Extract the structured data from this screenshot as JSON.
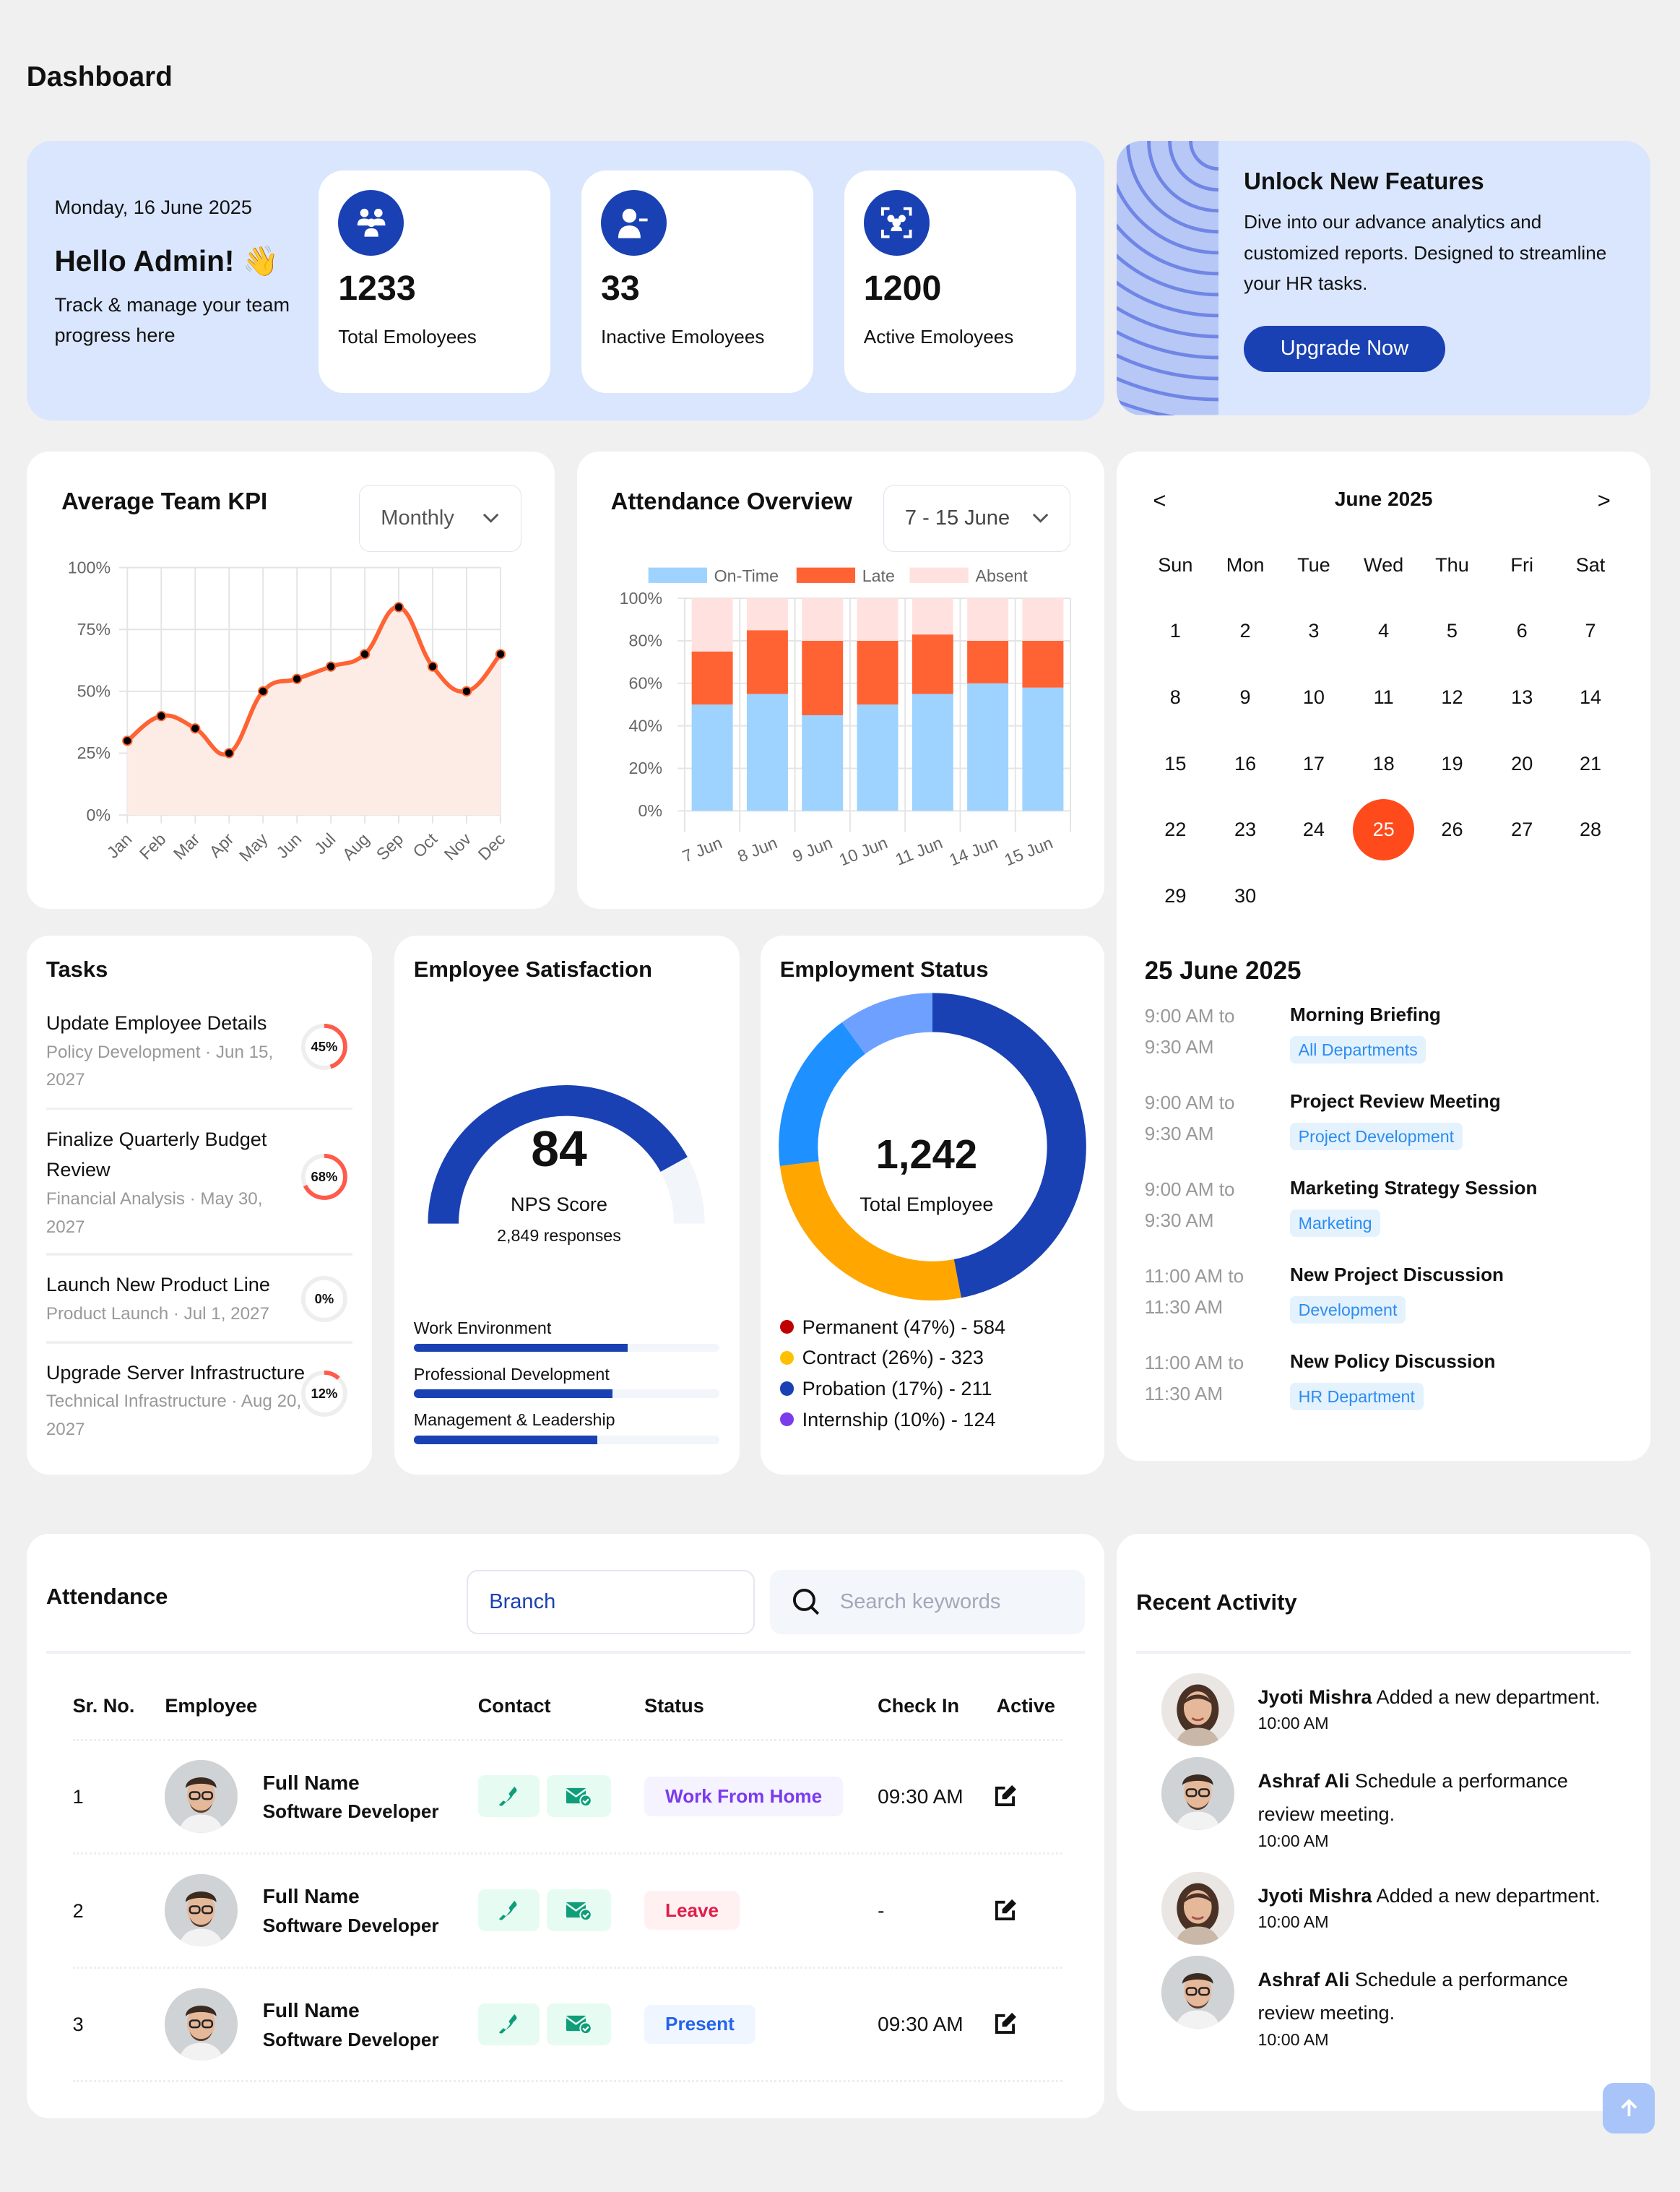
{
  "page_title": "Dashboard",
  "colors": {
    "primary": "#1a41b3",
    "accent": "#ff6333",
    "on_time": "#9dd3fe",
    "late": "#ff6333",
    "absent": "#ffe2df",
    "today": "#ff4a1c"
  },
  "hero": {
    "date": "Monday, 16 June 2025",
    "greeting": "Hello Admin! 👋",
    "subtitle": "Track & manage your team progress here",
    "stats": [
      {
        "icon": "users-group-icon",
        "value": "1233",
        "label": "Total Emoloyees"
      },
      {
        "icon": "user-minus-icon",
        "value": "33",
        "label": "Inactive Emoloyees"
      },
      {
        "icon": "users-scan-icon",
        "value": "1200",
        "label": "Active Emoloyees"
      }
    ]
  },
  "promo": {
    "title": "Unlock New Features",
    "text": "Dive into our advance analytics and customized reports. Designed to streamline your HR tasks.",
    "button": "Upgrade Now"
  },
  "kpi": {
    "title": "Average Team KPI",
    "period": "Monthly"
  },
  "attendance_overview": {
    "title": "Attendance Overview",
    "range": "7 - 15 June"
  },
  "chart_data": [
    {
      "type": "area",
      "title": "Average Team KPI",
      "categories": [
        "Jan",
        "Feb",
        "Mar",
        "Apr",
        "May",
        "Jun",
        "Jul",
        "Aug",
        "Sep",
        "Oct",
        "Nov",
        "Dec"
      ],
      "values": [
        30,
        40,
        35,
        25,
        50,
        55,
        60,
        65,
        84,
        60,
        50,
        65
      ],
      "yticks": [
        "0%",
        "25%",
        "50%",
        "75%",
        "100%"
      ],
      "ylim": [
        0,
        100
      ],
      "grid": true
    },
    {
      "type": "bar",
      "stacked": true,
      "title": "Attendance Overview",
      "categories": [
        "7 Jun",
        "8 Jun",
        "9 Jun",
        "10 Jun",
        "11 Jun",
        "14 Jun",
        "15 Jun"
      ],
      "series": [
        {
          "name": "On-Time",
          "values": [
            50,
            55,
            45,
            50,
            55,
            60,
            58
          ]
        },
        {
          "name": "Late",
          "values": [
            25,
            30,
            35,
            30,
            28,
            20,
            22
          ]
        },
        {
          "name": "Absent",
          "values": [
            25,
            15,
            20,
            20,
            17,
            20,
            20
          ]
        }
      ],
      "yticks": [
        "0%",
        "20%",
        "40%",
        "60%",
        "80%",
        "100%"
      ],
      "ylim": [
        0,
        100
      ],
      "legend": "top",
      "grid": true
    }
  ],
  "calendar": {
    "prev": "<",
    "next": ">",
    "month": "June 2025",
    "weekdays": [
      "Sun",
      "Mon",
      "Tue",
      "Wed",
      "Thu",
      "Fri",
      "Sat"
    ],
    "days": [
      "1",
      "2",
      "3",
      "4",
      "5",
      "6",
      "7",
      "8",
      "9",
      "10",
      "11",
      "12",
      "13",
      "14",
      "15",
      "16",
      "17",
      "18",
      "19",
      "20",
      "21",
      "22",
      "23",
      "24",
      "25",
      "26",
      "27",
      "28",
      "29",
      "30"
    ],
    "selected": "25",
    "events_date": "25 June 2025",
    "events": [
      {
        "from": "9:00 AM to",
        "to": "9:30 AM",
        "title": "Morning Briefing",
        "tag": "All Departments"
      },
      {
        "from": "9:00 AM to",
        "to": "9:30 AM",
        "title": "Project Review Meeting",
        "tag": "Project Development"
      },
      {
        "from": "9:00 AM to",
        "to": "9:30 AM",
        "title": "Marketing Strategy Session",
        "tag": "Marketing"
      },
      {
        "from": "11:00 AM to",
        "to": "11:30 AM",
        "title": "New Project Discussion",
        "tag": "Development"
      },
      {
        "from": "11:00 AM to",
        "to": "11:30 AM",
        "title": "New Policy Discussion",
        "tag": "HR Department"
      }
    ]
  },
  "tasks": {
    "title": "Tasks",
    "items": [
      {
        "title": "Update Employee Details",
        "meta": "Policy Development · Jun 15, 2027",
        "progress": 45,
        "label": "45%"
      },
      {
        "title": "Finalize Quarterly Budget Review",
        "meta": "Financial Analysis · May 30, 2027",
        "progress": 68,
        "label": "68%"
      },
      {
        "title": "Launch New Product Line",
        "meta": "Product Launch · Jul 1, 2027",
        "progress": 0,
        "label": "0%"
      },
      {
        "title": "Upgrade Server Infrastructure",
        "meta": "Technical Infrastructure · Aug 20, 2027",
        "progress": 12,
        "label": "12%"
      }
    ]
  },
  "satisfaction": {
    "title": "Employee Satisfaction",
    "score": "84",
    "score_value": 84,
    "score_label": "NPS Score",
    "responses": "2,849 responses",
    "bars": [
      {
        "label": "Work Environment",
        "value": 70
      },
      {
        "label": "Professional Development",
        "value": 65
      },
      {
        "label": "Management & Leadership",
        "value": 60
      }
    ]
  },
  "employment": {
    "title": "Employment Status",
    "total": "1,242",
    "total_label": "Total Employee",
    "segments": [
      {
        "label": "Permanent (47%) - 584",
        "percent": 47,
        "legend_color": "#c00000",
        "arc_color": "#1a41b3"
      },
      {
        "label": "Contract (26%) - 323",
        "percent": 26,
        "legend_color": "#ffc000",
        "arc_color": "#ffa600"
      },
      {
        "label": "Probation (17%) - 211",
        "percent": 17,
        "legend_color": "#1a41b3",
        "arc_color": "#1e90ff"
      },
      {
        "label": "Internship (10%) - 124",
        "percent": 10,
        "legend_color": "#7c3aed",
        "arc_color": "#6ea1ff"
      }
    ]
  },
  "attendance": {
    "title": "Attendance",
    "branch_placeholder": "Branch",
    "search_placeholder": "Search keywords",
    "columns": [
      "Sr. No.",
      "Employee",
      "Contact",
      "Status",
      "Check In",
      "Active"
    ],
    "rows": [
      {
        "sr": "1",
        "name": "Full Name",
        "role": "Software Developer",
        "status": "Work From Home",
        "status_color": "#7c3aed",
        "status_bg": "#f5f3ff",
        "check_in": "09:30 AM"
      },
      {
        "sr": "2",
        "name": "Full Name",
        "role": "Software Developer",
        "status": "Leave",
        "status_color": "#e11d48",
        "status_bg": "#fff1f2",
        "check_in": "-"
      },
      {
        "sr": "3",
        "name": "Full Name",
        "role": "Software Developer",
        "status": "Present",
        "status_color": "#2563eb",
        "status_bg": "#eff6ff",
        "check_in": "09:30 AM"
      }
    ]
  },
  "recent_activity": {
    "title": "Recent Activity",
    "items": [
      {
        "name": "Jyoti Mishra",
        "text": "Added a new department.",
        "time": "10:00 AM",
        "avatar": "female"
      },
      {
        "name": "Ashraf Ali",
        "text": "Schedule a performance review meeting.",
        "time": "10:00 AM",
        "avatar": "male"
      },
      {
        "name": "Jyoti Mishra",
        "text": "Added a new department.",
        "time": "10:00 AM",
        "avatar": "female"
      },
      {
        "name": "Ashraf Ali",
        "text": "Schedule a performance review meeting.",
        "time": "10:00 AM",
        "avatar": "male"
      }
    ]
  }
}
